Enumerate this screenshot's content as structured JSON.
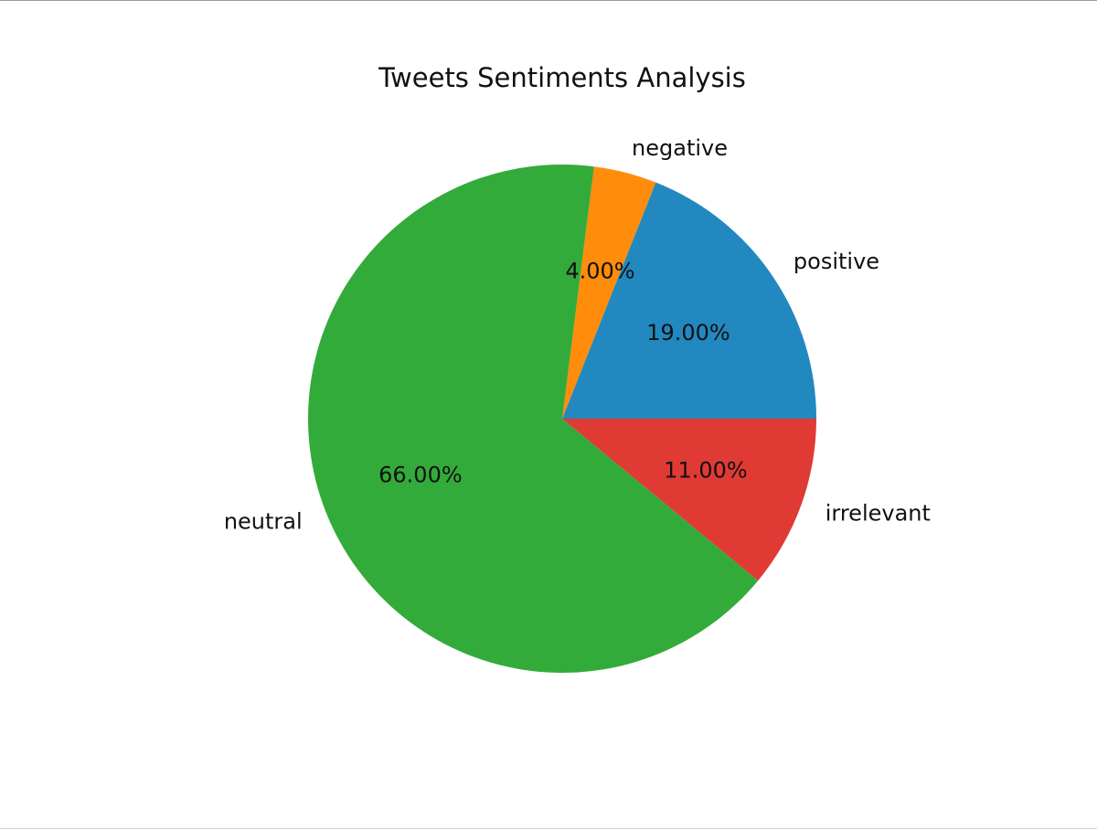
{
  "chart_data": {
    "type": "pie",
    "title": "Tweets Sentiments Analysis",
    "categories": [
      "positive",
      "negative",
      "neutral",
      "irrelevant"
    ],
    "values": [
      19,
      4,
      66,
      11
    ],
    "percent_labels": [
      "19.00%",
      "4.00%",
      "66.00%",
      "11.00%"
    ],
    "colors": [
      "#2288c0",
      "#ff8c0a",
      "#33ab3a",
      "#e03a35"
    ],
    "start_angle_deg": 0,
    "direction": "counterclockwise",
    "legend": "none"
  }
}
